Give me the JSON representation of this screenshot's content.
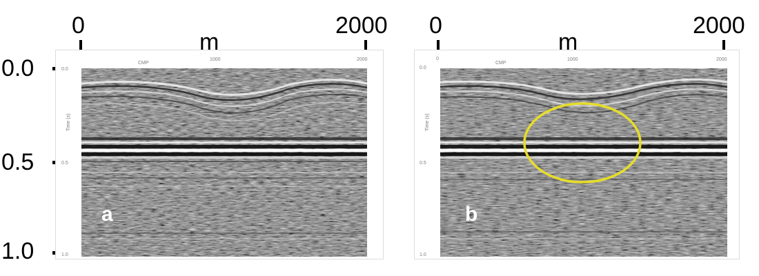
{
  "panels": [
    {
      "letter": "a",
      "x_start": "0",
      "x_end": "2000",
      "x_unit": "m",
      "y_ticks": [
        "0.0",
        "0.5",
        "1.0"
      ],
      "y_unit": "sec",
      "inner_cmp": "CMP",
      "inner_x_mid": "1000",
      "inner_x_end": "2000",
      "inner_y_ticks": [
        "0.0",
        "0.5",
        "1.0"
      ],
      "inner_time_label": "Time (s)"
    },
    {
      "letter": "b",
      "x_start": "0",
      "x_end": "2000",
      "x_unit": "m",
      "inner_cmp": "CMP",
      "inner_x_mid": "1000",
      "inner_x_end": "2000",
      "inner_x_start": "0",
      "inner_y_ticks": [
        "0.0",
        "0.5",
        "1.0"
      ],
      "inner_time_label": "Time (s)",
      "highlight_color": "#e6dd2a"
    }
  ],
  "colors": {
    "seismic_background": "#7a7a7a",
    "frame_border": "#dcdcdc",
    "axis": "#000000",
    "panel_letter": "#ffffff"
  }
}
